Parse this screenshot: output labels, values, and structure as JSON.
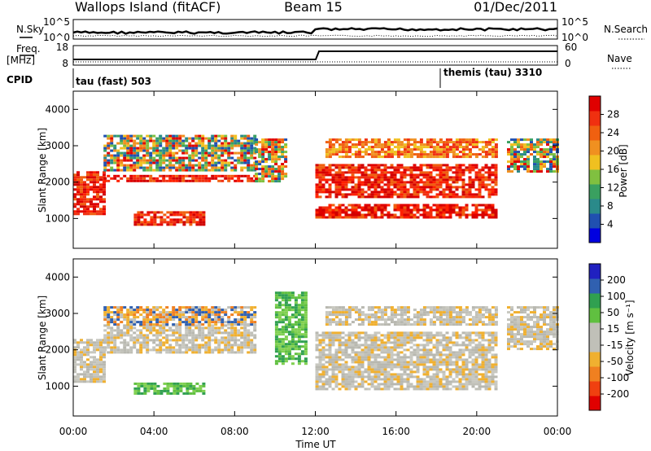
{
  "header": {
    "station": "Wallops Island (fitACF)",
    "beam": "Beam 15",
    "date": "01/Dec/2011"
  },
  "top_panels": {
    "nsky_label": "N.Sky",
    "nsearch_label": "N.Search",
    "noise_ticks": [
      "10^5",
      "10^0"
    ],
    "freq_label_1": "Freq.",
    "freq_label_2": "[MHz]",
    "freq_ticks": [
      "18",
      "8"
    ],
    "nave_label": "Nave",
    "nave_ticks": [
      "60",
      "0"
    ],
    "cpid_label": "CPID",
    "cpid_1": "tau (fast) 503",
    "cpid_2": "themis (tau) 3310"
  },
  "chart_data": [
    {
      "type": "heatmap",
      "title": "",
      "xlabel": "Time UT",
      "ylabel": "Slant Range [km]",
      "xlim": [
        0,
        24
      ],
      "ylim": [
        180,
        4500
      ],
      "xticks": [
        "00:00",
        "04:00",
        "08:00",
        "12:00",
        "16:00",
        "20:00",
        "00:00"
      ],
      "yticks": [
        "1000",
        "2000",
        "3000",
        "4000"
      ],
      "colorbar": {
        "label": "Power [dB]",
        "ticks": [
          "28",
          "24",
          "20",
          "16",
          "12",
          "8",
          "4"
        ],
        "colors": [
          "#0000e0",
          "#2050b0",
          "#2a8a8a",
          "#3aa060",
          "#80c040",
          "#f0c020",
          "#f09020",
          "#f06010",
          "#f03010",
          "#e00000"
        ]
      },
      "bands": [
        {
          "t0": 0.0,
          "t1": 1.5,
          "r0": 1100,
          "r1": 2300,
          "level": "high"
        },
        {
          "t0": 1.5,
          "t1": 9.0,
          "r0": 2000,
          "r1": 2200,
          "level": "high"
        },
        {
          "t0": 1.5,
          "t1": 9.0,
          "r0": 2300,
          "r1": 3300,
          "level": "mixed"
        },
        {
          "t0": 3.0,
          "t1": 6.5,
          "r0": 800,
          "r1": 1200,
          "level": "high"
        },
        {
          "t0": 9.0,
          "t1": 10.5,
          "r0": 2000,
          "r1": 3200,
          "level": "mixed"
        },
        {
          "t0": 12.0,
          "t1": 21.0,
          "r0": 1000,
          "r1": 1400,
          "level": "high"
        },
        {
          "t0": 12.0,
          "t1": 21.0,
          "r0": 1600,
          "r1": 2500,
          "level": "high"
        },
        {
          "t0": 12.5,
          "t1": 21.0,
          "r0": 2700,
          "r1": 3200,
          "level": "mid"
        },
        {
          "t0": 21.5,
          "t1": 24.0,
          "r0": 2300,
          "r1": 3200,
          "level": "mixed"
        }
      ]
    },
    {
      "type": "heatmap",
      "title": "",
      "xlabel": "Time UT",
      "ylabel": "Slant Range [km]",
      "xlim": [
        0,
        24
      ],
      "ylim": [
        180,
        4500
      ],
      "xticks": [
        "00:00",
        "04:00",
        "08:00",
        "12:00",
        "16:00",
        "20:00",
        "00:00"
      ],
      "yticks": [
        "1000",
        "2000",
        "3000",
        "4000"
      ],
      "colorbar": {
        "label": "Velocity [m s⁻¹]",
        "ticks": [
          "200",
          "100",
          "50",
          "15",
          "-15",
          "-50",
          "-100",
          "-200"
        ],
        "colors": [
          "#e00000",
          "#f04010",
          "#f08020",
          "#f0b030",
          "#c0c0b8",
          "#c0c0b8",
          "#60c040",
          "#30a050",
          "#3060b0",
          "#2020c0"
        ]
      },
      "bands": [
        {
          "t0": 0.0,
          "t1": 1.5,
          "r0": 1100,
          "r1": 2300,
          "level": "gray"
        },
        {
          "t0": 1.5,
          "t1": 9.0,
          "r0": 1900,
          "r1": 2700,
          "level": "gray"
        },
        {
          "t0": 1.5,
          "t1": 9.0,
          "r0": 2700,
          "r1": 3200,
          "level": "orange"
        },
        {
          "t0": 3.0,
          "t1": 6.5,
          "r0": 800,
          "r1": 1100,
          "level": "green"
        },
        {
          "t0": 10.0,
          "t1": 11.5,
          "r0": 1600,
          "r1": 3600,
          "level": "green"
        },
        {
          "t0": 12.0,
          "t1": 21.0,
          "r0": 900,
          "r1": 2500,
          "level": "gray"
        },
        {
          "t0": 12.5,
          "t1": 21.0,
          "r0": 2700,
          "r1": 3200,
          "level": "gray"
        },
        {
          "t0": 21.5,
          "t1": 24.0,
          "r0": 2000,
          "r1": 3200,
          "level": "gray"
        }
      ]
    }
  ]
}
